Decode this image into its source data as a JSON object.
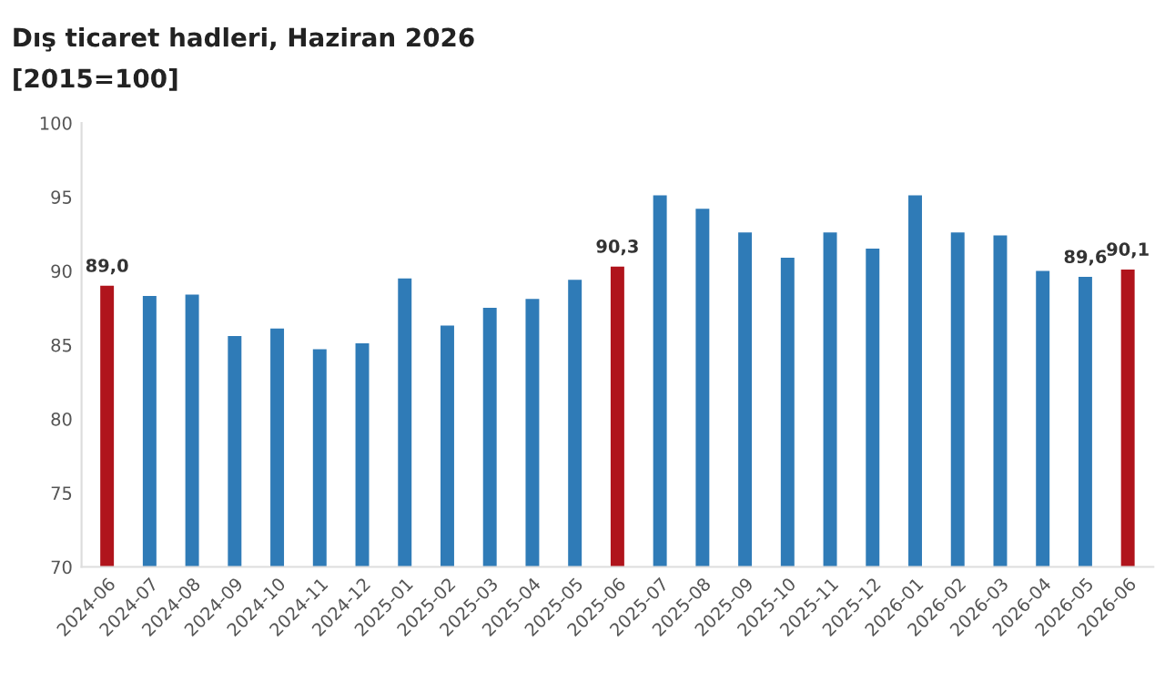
{
  "chart_data": {
    "type": "bar",
    "title": "Dış ticaret hadleri, Haziran 2026",
    "subtitle": "[2015=100]",
    "categories": [
      "2024-06",
      "2024-07",
      "2024-08",
      "2024-09",
      "2024-10",
      "2024-11",
      "2024-12",
      "2025-01",
      "2025-02",
      "2025-03",
      "2025-04",
      "2025-05",
      "2025-06",
      "2025-07",
      "2025-08",
      "2025-09",
      "2025-10",
      "2025-11",
      "2025-12",
      "2026-01",
      "2026-02",
      "2026-03",
      "2026-04",
      "2026-05",
      "2026-06"
    ],
    "values": [
      89.0,
      88.3,
      88.4,
      85.6,
      86.1,
      84.7,
      85.1,
      89.5,
      86.3,
      87.5,
      88.1,
      89.4,
      90.3,
      95.1,
      94.2,
      92.6,
      90.9,
      92.6,
      91.5,
      95.1,
      92.6,
      92.4,
      90.0,
      89.6,
      90.1
    ],
    "colors": [
      "#b0141c",
      "#2f7bb7",
      "#2f7bb7",
      "#2f7bb7",
      "#2f7bb7",
      "#2f7bb7",
      "#2f7bb7",
      "#2f7bb7",
      "#2f7bb7",
      "#2f7bb7",
      "#2f7bb7",
      "#2f7bb7",
      "#b0141c",
      "#2f7bb7",
      "#2f7bb7",
      "#2f7bb7",
      "#2f7bb7",
      "#2f7bb7",
      "#2f7bb7",
      "#2f7bb7",
      "#2f7bb7",
      "#2f7bb7",
      "#2f7bb7",
      "#2f7bb7",
      "#b0141c"
    ],
    "value_labels": [
      "89,0",
      null,
      null,
      null,
      null,
      null,
      null,
      null,
      null,
      null,
      null,
      null,
      "90,3",
      null,
      null,
      null,
      null,
      null,
      null,
      null,
      null,
      null,
      null,
      "89,6",
      "90,1"
    ],
    "ylim": [
      70,
      100
    ],
    "yticks": [
      70,
      75,
      80,
      85,
      90,
      95,
      100
    ],
    "grid": false
  }
}
